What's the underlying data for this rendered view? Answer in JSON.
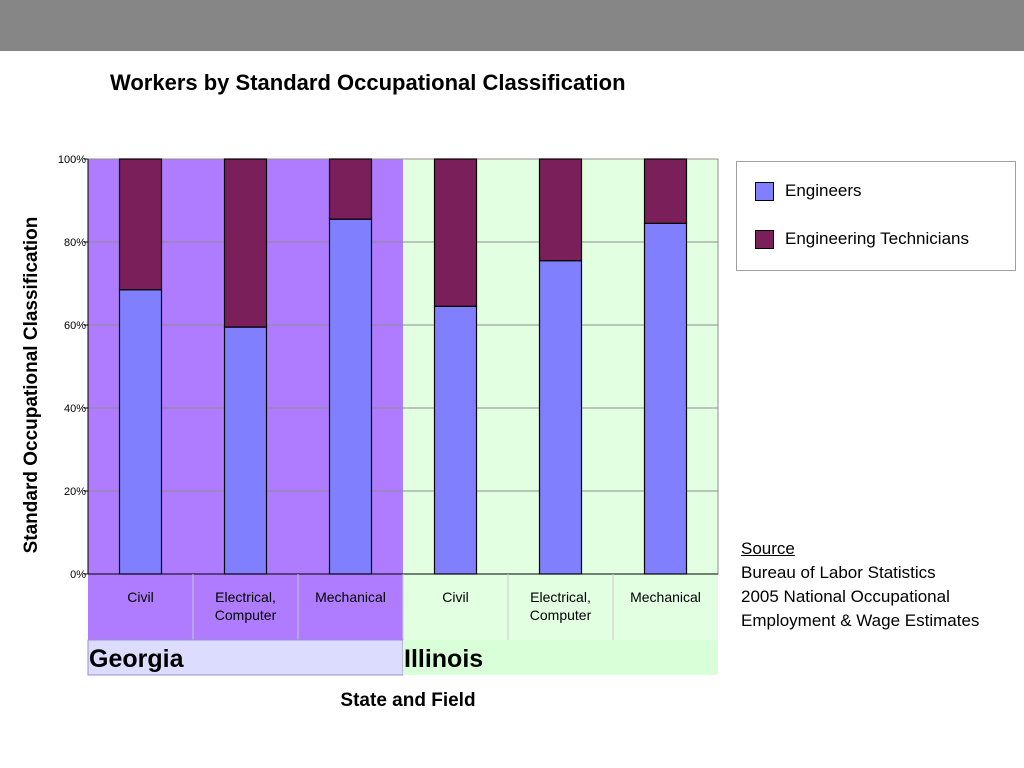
{
  "title": "Workers by Standard Occupational Classification",
  "colors": {
    "engineers": "#8080ff",
    "technicians": "#7b1f5b",
    "georgia_bg": "#b07cff",
    "illinois_bg": "#e2ffe2",
    "georgia_label_bg": "#dcdcff",
    "illinois_label_bg": "#d9ffd9",
    "topbar": "#868686"
  },
  "legend": {
    "engineers": "Engineers",
    "technicians": "Engineering Technicians"
  },
  "source": {
    "heading": "Source",
    "line1": "Bureau of Labor Statistics",
    "line2": "2005 National Occupational",
    "line3": "Employment & Wage Estimates"
  },
  "chart_data": {
    "type": "bar",
    "stacked": true,
    "title": "Workers by Standard Occupational Classification",
    "xlabel": "State and Field",
    "ylabel": "Standard Occupational Classification",
    "ylim": [
      0,
      100
    ],
    "yticks": [
      "0%",
      "20%",
      "40%",
      "60%",
      "80%",
      "100%"
    ],
    "grid": true,
    "legend_position": "top-right",
    "groups": [
      {
        "name": "Georgia",
        "categories": [
          "Civil",
          "Electrical, Computer",
          "Mechanical"
        ]
      },
      {
        "name": "Illinois",
        "categories": [
          "Civil",
          "Electrical, Computer",
          "Mechanical"
        ]
      }
    ],
    "categories": [
      "Civil",
      "Electrical, Computer",
      "Mechanical",
      "Civil",
      "Electrical, Computer",
      "Mechanical"
    ],
    "series": [
      {
        "name": "Engineers",
        "values": [
          68.5,
          59.5,
          85.5,
          64.5,
          75.5,
          84.5
        ]
      },
      {
        "name": "Engineering Technicians",
        "values": [
          31.5,
          40.5,
          14.5,
          35.5,
          24.5,
          15.5
        ]
      }
    ]
  }
}
